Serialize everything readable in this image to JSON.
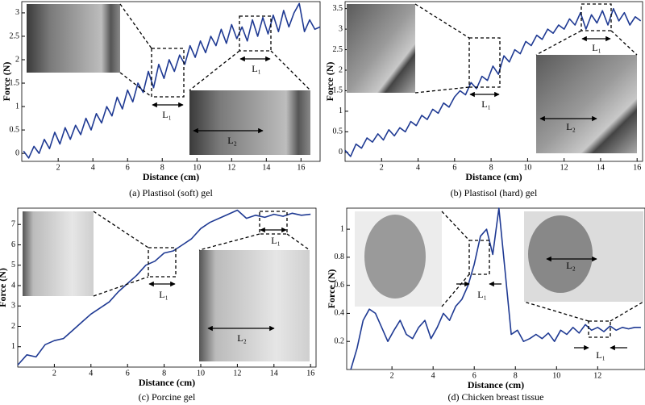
{
  "chart_data": [
    {
      "type": "line",
      "caption": "(a) Plastisol (soft) gel",
      "xlabel": "Distance (cm)",
      "ylabel": "Force (N)",
      "xlim": [
        -0.1,
        17.1
      ],
      "ylim": [
        -0.17,
        3.24
      ],
      "xticks": [
        2,
        4,
        6,
        8,
        10,
        12,
        14,
        16
      ],
      "yticks": [
        0,
        0.5,
        1,
        1.5,
        2,
        2.5,
        3
      ],
      "annotations": [
        "L₁",
        "L₁",
        "L₂"
      ],
      "series": [
        {
          "color": "#1f3a93",
          "x": [
            0,
            0.3,
            0.6,
            0.9,
            1.2,
            1.5,
            1.8,
            2.1,
            2.4,
            2.7,
            3,
            3.3,
            3.6,
            3.9,
            4.2,
            4.5,
            4.8,
            5.1,
            5.4,
            5.7,
            6,
            6.3,
            6.6,
            6.9,
            7.2,
            7.5,
            7.8,
            8.1,
            8.4,
            8.7,
            9,
            9.3,
            9.6,
            9.9,
            10.2,
            10.5,
            10.8,
            11.1,
            11.4,
            11.7,
            12,
            12.3,
            12.6,
            12.9,
            13.2,
            13.5,
            13.8,
            14.1,
            14.4,
            14.7,
            15,
            15.3,
            15.6,
            15.9,
            16.2,
            16.5,
            16.8,
            17.1
          ],
          "values": [
            0.05,
            -0.1,
            0.15,
            0.0,
            0.3,
            0.1,
            0.45,
            0.2,
            0.55,
            0.3,
            0.6,
            0.4,
            0.75,
            0.5,
            0.85,
            0.65,
            1.0,
            0.8,
            1.2,
            0.95,
            1.35,
            1.1,
            1.5,
            1.3,
            1.75,
            1.4,
            1.9,
            1.6,
            2.0,
            1.75,
            2.1,
            1.9,
            2.3,
            2.05,
            2.4,
            2.15,
            2.5,
            2.3,
            2.65,
            2.35,
            2.75,
            2.45,
            2.7,
            2.4,
            2.85,
            2.5,
            2.9,
            2.55,
            2.95,
            2.6,
            3.05,
            2.7,
            3.0,
            3.2,
            2.6,
            2.85,
            2.65,
            2.7
          ]
        }
      ]
    },
    {
      "type": "line",
      "caption": "(b) Plastisol (hard) gel",
      "xlabel": "Distance (cm)",
      "ylabel": "Force (N)",
      "xlim": [
        0,
        16.3
      ],
      "ylim": [
        -0.22,
        3.67
      ],
      "xticks": [
        2,
        4,
        6,
        8,
        10,
        12,
        14,
        16
      ],
      "yticks": [
        0,
        0.5,
        1,
        1.5,
        2,
        2.5,
        3,
        3.5
      ],
      "annotations": [
        "L₁",
        "L₁",
        "L₂"
      ],
      "series": [
        {
          "color": "#1f3a93",
          "x": [
            0,
            0.3,
            0.6,
            0.9,
            1.2,
            1.5,
            1.8,
            2.1,
            2.4,
            2.7,
            3,
            3.3,
            3.6,
            3.9,
            4.2,
            4.5,
            4.8,
            5.1,
            5.4,
            5.7,
            6,
            6.3,
            6.6,
            6.9,
            7.2,
            7.5,
            7.8,
            8.1,
            8.4,
            8.7,
            9,
            9.3,
            9.6,
            9.9,
            10.2,
            10.5,
            10.8,
            11.1,
            11.4,
            11.7,
            12,
            12.3,
            12.6,
            12.9,
            13.2,
            13.5,
            13.8,
            14.1,
            14.4,
            14.7,
            15,
            15.3,
            15.6,
            15.9,
            16.2
          ],
          "values": [
            0.05,
            -0.1,
            0.2,
            0.1,
            0.35,
            0.25,
            0.45,
            0.3,
            0.55,
            0.4,
            0.6,
            0.5,
            0.75,
            0.65,
            0.9,
            0.8,
            1.05,
            0.95,
            1.2,
            1.1,
            1.35,
            1.5,
            1.4,
            1.7,
            1.55,
            1.85,
            1.75,
            2.1,
            1.9,
            2.35,
            2.2,
            2.5,
            2.4,
            2.7,
            2.6,
            2.85,
            2.75,
            3.0,
            2.9,
            3.1,
            3.0,
            3.25,
            3.1,
            3.4,
            3.0,
            3.35,
            3.15,
            3.45,
            3.1,
            3.5,
            3.2,
            3.4,
            3.1,
            3.3,
            3.2
          ]
        }
      ]
    },
    {
      "type": "line",
      "caption": "(c) Porcine gel",
      "xlabel": "Distance (cm)",
      "ylabel": "Force (N)",
      "xlim": [
        0,
        16.3
      ],
      "ylim": [
        0,
        7.8
      ],
      "xticks": [
        2,
        4,
        6,
        8,
        10,
        12,
        14,
        16
      ],
      "yticks": [
        1,
        2,
        3,
        4,
        5,
        6,
        7
      ],
      "annotations": [
        "L₁",
        "L₁",
        "L₂"
      ],
      "series": [
        {
          "color": "#1f3a93",
          "x": [
            0,
            0.5,
            1,
            1.5,
            2,
            2.5,
            3,
            3.5,
            4,
            4.5,
            5,
            5.5,
            6,
            6.5,
            7,
            7.5,
            8,
            8.5,
            9,
            9.5,
            10,
            10.5,
            11,
            11.5,
            12,
            12.5,
            13,
            13.5,
            14,
            14.5,
            15,
            15.5,
            16
          ],
          "values": [
            0.1,
            0.6,
            0.5,
            1.1,
            1.3,
            1.4,
            1.8,
            2.2,
            2.6,
            2.9,
            3.2,
            3.7,
            4.1,
            4.5,
            5.0,
            5.2,
            5.6,
            5.7,
            6.0,
            6.3,
            6.8,
            7.1,
            7.3,
            7.5,
            7.7,
            7.3,
            7.45,
            7.35,
            7.5,
            7.4,
            7.55,
            7.45,
            7.5
          ]
        }
      ]
    },
    {
      "type": "line",
      "caption": "(d) Chicken breast tissue",
      "xlabel": "Distance (cm)",
      "ylabel": "Force (N)",
      "xlim": [
        -0.2,
        14.3
      ],
      "ylim": [
        0,
        1.15
      ],
      "xticks": [
        2,
        4,
        6,
        8,
        10,
        12
      ],
      "yticks": [
        0.2,
        0.4,
        0.6,
        0.8,
        1
      ],
      "annotations": [
        "L₁",
        "L₁",
        "L₂"
      ],
      "series": [
        {
          "color": "#1f3a93",
          "x": [
            0,
            0.3,
            0.6,
            0.9,
            1.2,
            1.5,
            1.8,
            2.1,
            2.4,
            2.7,
            3,
            3.3,
            3.6,
            3.9,
            4.2,
            4.5,
            4.8,
            5.1,
            5.4,
            5.7,
            6,
            6.3,
            6.6,
            6.9,
            7.2,
            7.5,
            7.8,
            8.1,
            8.4,
            8.7,
            9,
            9.3,
            9.6,
            9.9,
            10.2,
            10.5,
            10.8,
            11.1,
            11.4,
            11.7,
            12,
            12.3,
            12.6,
            12.9,
            13.2,
            13.5,
            13.8,
            14.1
          ],
          "values": [
            0.0,
            0.15,
            0.35,
            0.43,
            0.4,
            0.3,
            0.2,
            0.28,
            0.35,
            0.25,
            0.22,
            0.3,
            0.35,
            0.22,
            0.3,
            0.4,
            0.35,
            0.45,
            0.5,
            0.6,
            0.75,
            0.95,
            1.0,
            0.82,
            1.15,
            0.7,
            0.25,
            0.28,
            0.2,
            0.22,
            0.25,
            0.22,
            0.26,
            0.2,
            0.28,
            0.25,
            0.3,
            0.26,
            0.32,
            0.28,
            0.3,
            0.27,
            0.31,
            0.28,
            0.3,
            0.29,
            0.3,
            0.3
          ]
        }
      ]
    }
  ]
}
